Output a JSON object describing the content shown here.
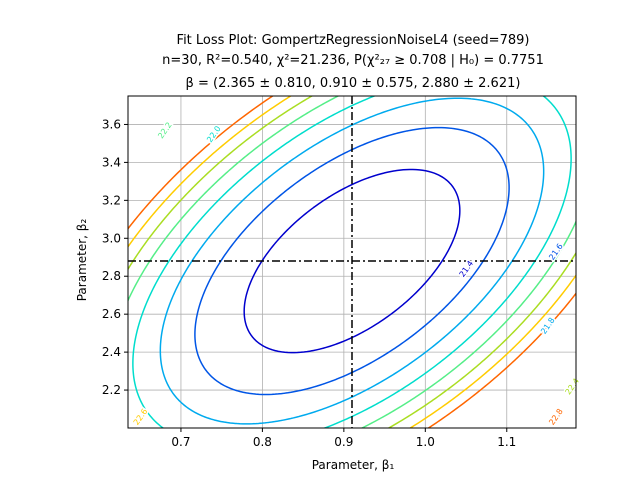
{
  "chart_data": {
    "type": "contour",
    "title_lines": [
      "Fit Loss Plot: GompertzRegressionNoiseL4 (seed=789)",
      "n=30, R²=0.540, χ²=21.236, P(χ²₂₇ ≥ 0.708 | H₀) = 0.7751",
      "β = (2.365 ± 0.810, 0.910 ± 0.575, 2.880 ± 2.621)"
    ],
    "xlabel": "Parameter, β₁",
    "ylabel": "Parameter, β₂",
    "xlim": [
      0.635,
      1.185
    ],
    "ylim": [
      2.0,
      3.75
    ],
    "xticks": [
      0.7,
      0.8,
      0.9,
      1.0,
      1.1
    ],
    "xtick_labels": [
      "0.7",
      "0.8",
      "0.9",
      "1.0",
      "1.1"
    ],
    "yticks": [
      2.2,
      2.4,
      2.6,
      2.8,
      3.0,
      3.2,
      3.4,
      3.6
    ],
    "ytick_labels": [
      "2.2",
      "2.4",
      "2.6",
      "2.8",
      "3.0",
      "3.2",
      "3.4",
      "3.6"
    ],
    "grid": true,
    "best_fit": {
      "x": 0.91,
      "y": 2.88
    },
    "contours": [
      {
        "level": 21.4,
        "label": "21.4",
        "color": "#0000cd",
        "label_at": [
          1.05,
          2.84
        ]
      },
      {
        "level": 21.6,
        "label": "21.6",
        "color": "#0055e6",
        "label_at": [
          1.16,
          2.93
        ]
      },
      {
        "level": 21.8,
        "label": "21.8",
        "color": "#00aaee",
        "label_at": [
          1.15,
          2.54
        ]
      },
      {
        "level": 22.0,
        "label": "22.0",
        "color": "#00ddcc",
        "label_at": [
          0.74,
          3.55
        ]
      },
      {
        "level": 22.2,
        "label": "22.2",
        "color": "#55ee88",
        "label_at": [
          0.68,
          3.57
        ]
      },
      {
        "level": 22.4,
        "label": "22.4",
        "color": "#aadd22",
        "label_at": [
          1.18,
          2.22
        ]
      },
      {
        "level": 22.6,
        "label": "22.6",
        "color": "#ffcc00",
        "label_at": [
          0.65,
          2.06
        ]
      },
      {
        "level": 22.8,
        "label": "22.8",
        "color": "#ff6600",
        "label_at": [
          1.16,
          2.06
        ]
      }
    ]
  }
}
